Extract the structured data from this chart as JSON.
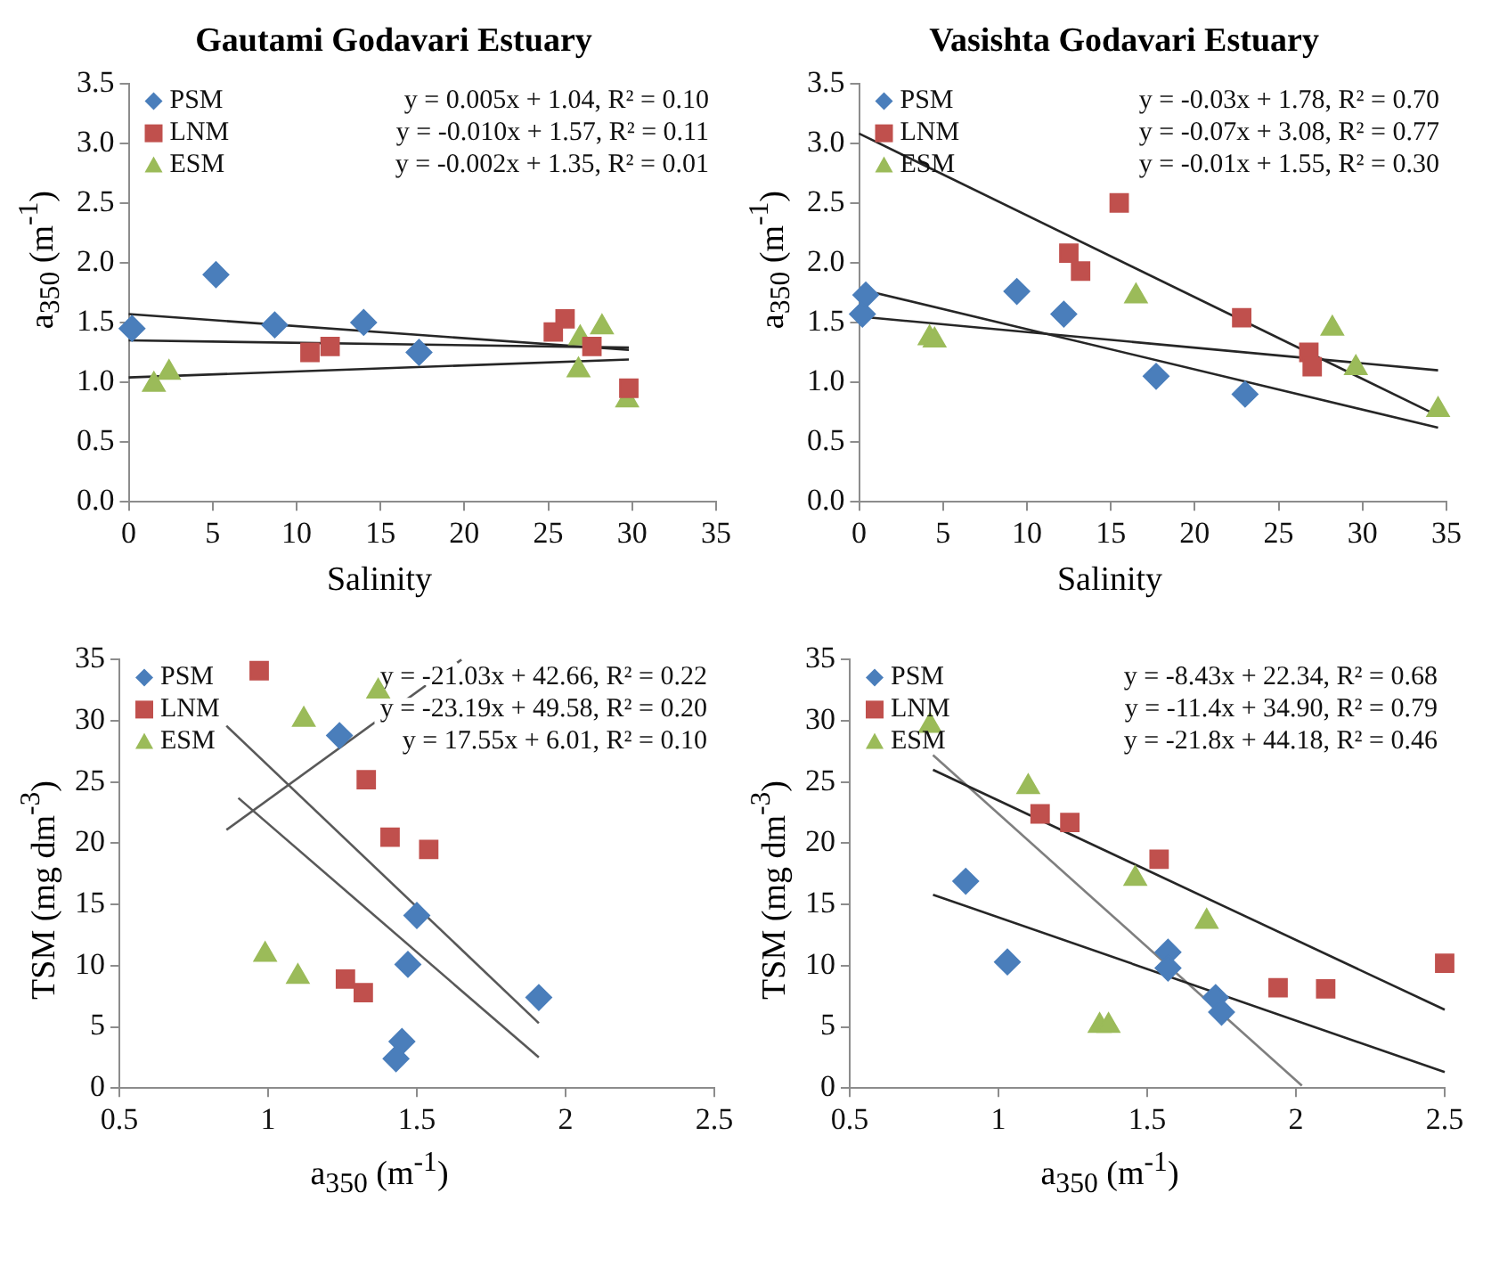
{
  "chart_data": [
    {
      "type": "scatter",
      "title": "Gautami Godavari Estuary",
      "xlabel": "Salinity",
      "ylabel": "a$_{350}$ (m$^{-1}$)",
      "xlim": [
        0,
        35
      ],
      "ylim": [
        0,
        3.5
      ],
      "xticks": [
        0,
        5,
        10,
        15,
        20,
        25,
        30,
        35
      ],
      "yticks": [
        {
          "value": 0,
          "label": "0.0"
        },
        0.5,
        {
          "value": 1,
          "label": "1.0"
        },
        1.5,
        {
          "value": 2,
          "label": "2.0"
        },
        2.5,
        {
          "value": 3,
          "label": "3.0"
        },
        3.5
      ],
      "legend": "top left",
      "annotations": [
        "y = 0.005x + 1.04, R² = 0.10",
        "y = -0.010x + 1.57, R² = 0.11",
        "y = -0.002x + 1.35, R² = 0.01"
      ],
      "series": [
        {
          "name": "PSM",
          "type": "scatter",
          "marker": "diamond",
          "color": "#4a7ebb",
          "x": [
            0.2,
            5.2,
            8.7,
            14,
            17.3
          ],
          "values": [
            1.45,
            1.9,
            1.48,
            1.5,
            1.25
          ]
        },
        {
          "name": "LNM",
          "type": "scatter",
          "marker": "square",
          "color": "#c0504d",
          "x": [
            10.8,
            12,
            25.3,
            26,
            27.6,
            29.8
          ],
          "values": [
            1.25,
            1.3,
            1.42,
            1.53,
            1.3,
            0.95
          ]
        },
        {
          "name": "ESM",
          "type": "scatter",
          "marker": "triangle",
          "color": "#9bbb59",
          "x": [
            1.5,
            2.4,
            26.8,
            26.9,
            28.2,
            29.7
          ],
          "values": [
            0.98,
            1.08,
            1.1,
            1.37,
            1.46,
            0.85
          ]
        },
        {
          "type": "line",
          "marker": "none",
          "line_style": "solid",
          "color": "#262626",
          "x": [
            0,
            29.8
          ],
          "values": [
            1.04,
            1.19
          ]
        },
        {
          "type": "line",
          "marker": "none",
          "line_style": "solid",
          "color": "#262626",
          "x": [
            0,
            29.8
          ],
          "values": [
            1.57,
            1.27
          ]
        },
        {
          "type": "line",
          "marker": "none",
          "line_style": "solid",
          "color": "#262626",
          "x": [
            0,
            29.8
          ],
          "values": [
            1.35,
            1.29
          ]
        }
      ]
    },
    {
      "type": "scatter",
      "title": "Vasishta Godavari Estuary",
      "xlabel": "Salinity",
      "ylabel": "a$_{350}$ (m$^{-1}$)",
      "xlim": [
        0,
        35
      ],
      "ylim": [
        0,
        3.5
      ],
      "xticks": [
        0,
        5,
        10,
        15,
        20,
        25,
        30,
        35
      ],
      "yticks": [
        {
          "value": 0,
          "label": "0.0"
        },
        0.5,
        {
          "value": 1,
          "label": "1.0"
        },
        1.5,
        {
          "value": 2,
          "label": "2.0"
        },
        2.5,
        {
          "value": 3,
          "label": "3.0"
        },
        3.5
      ],
      "legend": "top left",
      "annotations": [
        "y = -0.03x + 1.78, R² = 0.70",
        "y = -0.07x + 3.08, R² = 0.77",
        "y = -0.01x + 1.55, R² = 0.30"
      ],
      "series": [
        {
          "name": "PSM",
          "type": "scatter",
          "marker": "diamond",
          "color": "#4a7ebb",
          "x": [
            0.2,
            0.4,
            9.4,
            12.2,
            17.7,
            23
          ],
          "values": [
            1.57,
            1.73,
            1.76,
            1.57,
            1.05,
            0.9
          ]
        },
        {
          "name": "LNM",
          "type": "scatter",
          "marker": "square",
          "color": "#c0504d",
          "x": [
            12.5,
            13.2,
            15.5,
            22.8,
            26.8,
            27
          ],
          "values": [
            2.08,
            1.93,
            2.5,
            1.54,
            1.25,
            1.13
          ]
        },
        {
          "name": "ESM",
          "type": "scatter",
          "marker": "triangle",
          "color": "#9bbb59",
          "x": [
            4.2,
            4.5,
            16.5,
            28.2,
            29.6,
            34.5
          ],
          "values": [
            1.37,
            1.35,
            1.72,
            1.45,
            1.12,
            0.77
          ]
        },
        {
          "type": "line",
          "marker": "none",
          "line_style": "solid",
          "color": "#262626",
          "x": [
            0.3,
            34.5
          ],
          "values": [
            1.77,
            0.62
          ]
        },
        {
          "type": "line",
          "marker": "none",
          "line_style": "solid",
          "color": "#262626",
          "x": [
            0,
            34.5
          ],
          "values": [
            3.08,
            0.72
          ]
        },
        {
          "type": "line",
          "marker": "none",
          "line_style": "solid",
          "color": "#262626",
          "x": [
            0,
            34.5
          ],
          "values": [
            1.55,
            1.1
          ]
        }
      ]
    },
    {
      "type": "scatter",
      "xlabel": "a$_{350}$ (m$^{-1}$)",
      "ylabel": "TSM (mg dm$^{-3}$)",
      "xlim": [
        0.5,
        2.5
      ],
      "ylim": [
        0,
        35
      ],
      "xticks": [
        0.5,
        1,
        1.5,
        2,
        2.5
      ],
      "yticks": [
        0,
        5,
        10,
        15,
        20,
        25,
        30,
        35
      ],
      "legend": "top left",
      "annotations": [
        "y = -21.03x + 42.66, R² = 0.22",
        "y = -23.19x + 49.58, R² = 0.20",
        "y = 17.55x + 6.01, R² = 0.10"
      ],
      "series": [
        {
          "name": "PSM",
          "type": "scatter",
          "marker": "diamond",
          "color": "#4a7ebb",
          "x": [
            1.24,
            1.5,
            1.47,
            1.45,
            1.43,
            1.91
          ],
          "values": [
            28.8,
            14.1,
            10.1,
            3.8,
            2.4,
            7.4
          ]
        },
        {
          "name": "LNM",
          "type": "scatter",
          "marker": "square",
          "color": "#c0504d",
          "x": [
            0.97,
            1.26,
            1.32,
            1.33,
            1.41,
            1.54
          ],
          "values": [
            34.1,
            8.9,
            7.8,
            25.2,
            20.5,
            19.5
          ]
        },
        {
          "name": "ESM",
          "type": "scatter",
          "marker": "triangle",
          "color": "#9bbb59",
          "x": [
            1.12,
            1.37,
            0.99,
            1.1
          ],
          "values": [
            30.1,
            32.4,
            10.9,
            9.1
          ]
        },
        {
          "type": "line",
          "marker": "none",
          "line_style": "solid",
          "color": "#595959",
          "x": [
            0.9,
            1.91
          ],
          "values": [
            23.7,
            2.5
          ]
        },
        {
          "type": "line",
          "marker": "none",
          "line_style": "solid",
          "color": "#595959",
          "x": [
            0.86,
            1.91
          ],
          "values": [
            29.6,
            5.3
          ]
        },
        {
          "type": "line",
          "marker": "none",
          "line_style": "solid",
          "color": "#595959",
          "x": [
            0.86,
            1.65
          ],
          "values": [
            21.1,
            35
          ]
        }
      ]
    },
    {
      "type": "scatter",
      "xlabel": "a$_{350}$ (m$^{-1}$)",
      "ylabel": "TSM (mg dm$^{-3}$)",
      "xlim": [
        0.5,
        2.5
      ],
      "ylim": [
        0,
        35
      ],
      "xticks": [
        0.5,
        1,
        1.5,
        2,
        2.5
      ],
      "yticks": [
        0,
        5,
        10,
        15,
        20,
        25,
        30,
        35
      ],
      "legend": "top left",
      "annotations": [
        "y = -8.43x + 22.34, R² = 0.68",
        "y = -11.4x + 34.90, R² = 0.79",
        "y = -21.8x + 44.18, R² = 0.46"
      ],
      "series": [
        {
          "name": "PSM",
          "type": "scatter",
          "marker": "diamond",
          "color": "#4a7ebb",
          "x": [
            0.89,
            1.03,
            1.57,
            1.57,
            1.73,
            1.75
          ],
          "values": [
            16.9,
            10.3,
            11.1,
            9.8,
            7.4,
            6.2
          ]
        },
        {
          "name": "LNM",
          "type": "scatter",
          "marker": "square",
          "color": "#c0504d",
          "x": [
            1.14,
            1.24,
            1.54,
            1.94,
            2.1,
            2.5
          ],
          "values": [
            22.4,
            21.7,
            18.7,
            8.2,
            8.1,
            10.2
          ]
        },
        {
          "name": "ESM",
          "type": "scatter",
          "marker": "triangle",
          "color": "#9bbb59",
          "x": [
            0.77,
            1.1,
            1.46,
            1.7,
            1.34,
            1.37
          ],
          "values": [
            29.6,
            24.6,
            17.1,
            13.6,
            5.1,
            5.1
          ]
        },
        {
          "type": "line",
          "marker": "none",
          "line_style": "solid",
          "color": "#262626",
          "x": [
            0.78,
            2.5
          ],
          "values": [
            15.8,
            1.3
          ]
        },
        {
          "type": "line",
          "marker": "none",
          "line_style": "solid",
          "color": "#262626",
          "x": [
            0.78,
            2.5
          ],
          "values": [
            26,
            6.4
          ]
        },
        {
          "type": "line",
          "marker": "none",
          "line_style": "solid",
          "color": "#7f7f7f",
          "x": [
            0.78,
            2.02
          ],
          "values": [
            27.2,
            0.2
          ]
        }
      ]
    }
  ]
}
